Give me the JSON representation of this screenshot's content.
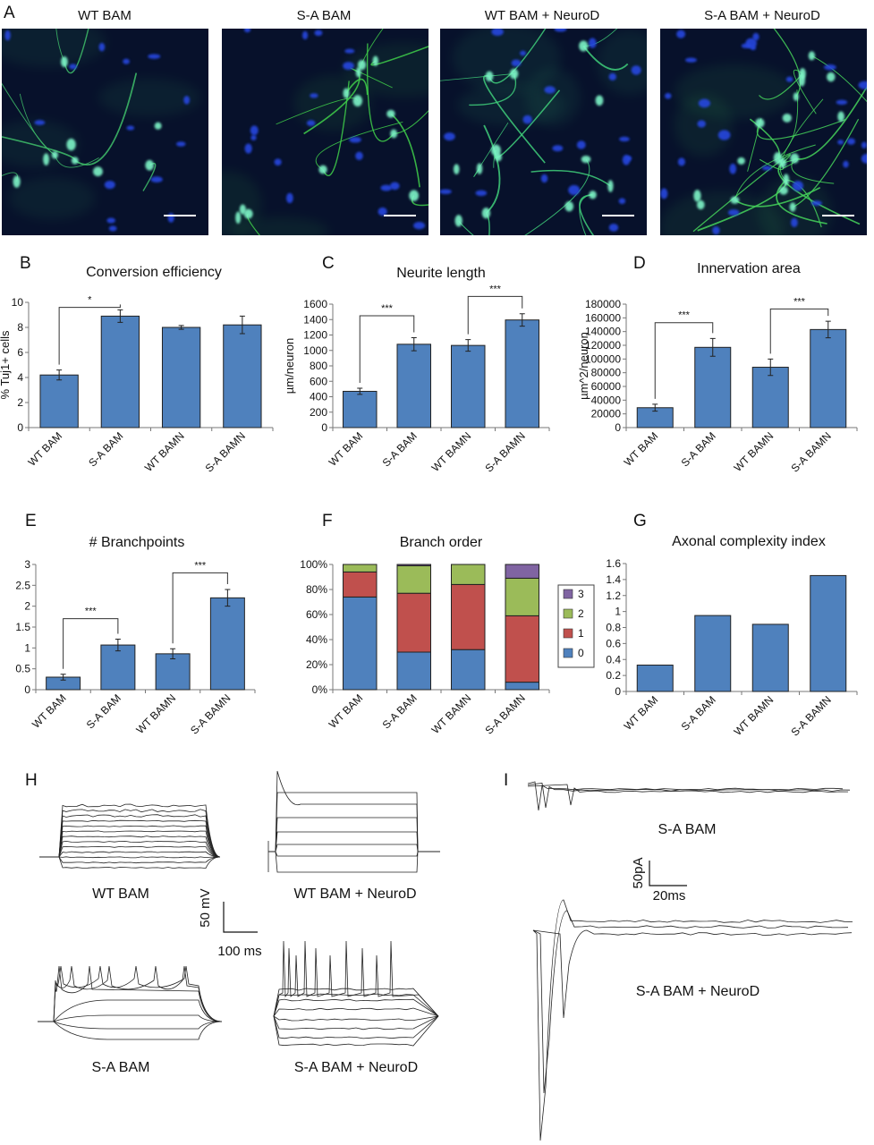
{
  "panelA": {
    "letter": "A",
    "images": [
      {
        "title": "WT BAM",
        "density": 0.35,
        "neurite": "#3fbf6a",
        "nucleus": "#2547e0"
      },
      {
        "title": "S-A BAM",
        "density": 0.55,
        "neurite": "#3fcf4a",
        "nucleus": "#2547e0"
      },
      {
        "title": "WT BAM + NeuroD",
        "density": 0.7,
        "neurite": "#3fcf7a",
        "nucleus": "#2547e0"
      },
      {
        "title": "S-A BAM + NeuroD",
        "density": 1.0,
        "neurite": "#45d35a",
        "nucleus": "#2547e0"
      }
    ]
  },
  "chart_data": [
    {
      "id": "B",
      "type": "bar",
      "title": "Conversion efficiency",
      "ylabel": "% Tuj1+ cells",
      "categories": [
        "WT BAM",
        "S-A BAM",
        "WT BAMN",
        "S-A BAMN"
      ],
      "values": [
        4.2,
        8.9,
        8.0,
        8.2
      ],
      "errors": [
        0.4,
        0.5,
        0.15,
        0.7
      ],
      "ylim": [
        0,
        10
      ],
      "yticks": [
        "0",
        "2",
        "4",
        "6",
        "8",
        "10"
      ],
      "significance": [
        {
          "from": 0,
          "to": 1,
          "label": "*",
          "level": 9.6
        }
      ],
      "bar_color": "#4f81bd"
    },
    {
      "id": "C",
      "type": "bar",
      "title": "Neurite length",
      "ylabel": "µm/neuron",
      "categories": [
        "WT BAM",
        "S-A BAM",
        "WT BAMN",
        "S-A BAMN"
      ],
      "values": [
        470,
        1080,
        1065,
        1395
      ],
      "errors": [
        40,
        85,
        75,
        80
      ],
      "ylim": [
        0,
        1600
      ],
      "yticks": [
        "0",
        "200",
        "400",
        "600",
        "800",
        "1000",
        "1200",
        "1400",
        "1600"
      ],
      "significance": [
        {
          "from": 0,
          "to": 1,
          "label": "***",
          "level": 1450
        },
        {
          "from": 2,
          "to": 3,
          "label": "***",
          "level": 1700
        }
      ],
      "bar_color": "#4f81bd"
    },
    {
      "id": "D",
      "type": "bar",
      "title": "Innervation area",
      "ylabel": "µm^2/neuron",
      "categories": [
        "WT BAM",
        "S-A BAM",
        "WT BAMN",
        "S-A BAMN"
      ],
      "values": [
        29000,
        117000,
        88000,
        143000
      ],
      "errors": [
        5000,
        13000,
        12000,
        12000
      ],
      "ylim": [
        0,
        180000
      ],
      "yticks": [
        "0",
        "20000",
        "40000",
        "60000",
        "80000",
        "100000",
        "120000",
        "140000",
        "160000",
        "180000"
      ],
      "significance": [
        {
          "from": 0,
          "to": 1,
          "label": "***",
          "level": 153000
        },
        {
          "from": 2,
          "to": 3,
          "label": "***",
          "level": 173000
        }
      ],
      "bar_color": "#4f81bd"
    },
    {
      "id": "E",
      "type": "bar",
      "title": "# Branchpoints",
      "ylabel": "",
      "categories": [
        "WT BAM",
        "S-A BAM",
        "WT BAMN",
        "S-A BAMN"
      ],
      "values": [
        0.3,
        1.07,
        0.86,
        2.2
      ],
      "errors": [
        0.07,
        0.14,
        0.12,
        0.2
      ],
      "ylim": [
        0,
        3
      ],
      "yticks": [
        "0",
        "0.5",
        "1",
        "1.5",
        "2",
        "2.5",
        "3"
      ],
      "significance": [
        {
          "from": 0,
          "to": 1,
          "label": "***",
          "level": 1.7
        },
        {
          "from": 2,
          "to": 3,
          "label": "***",
          "level": 2.8
        }
      ],
      "bar_color": "#4f81bd"
    },
    {
      "id": "F",
      "type": "bar",
      "stacked": true,
      "title": "Branch order",
      "ylabel": "",
      "categories": [
        "WT BAM",
        "S-A BAM",
        "WT BAMN",
        "S-A BAMN"
      ],
      "series": [
        {
          "name": "0",
          "color": "#4f81bd",
          "values": [
            74,
            30,
            32,
            6
          ]
        },
        {
          "name": "1",
          "color": "#c0504d",
          "values": [
            20,
            47,
            52,
            53
          ]
        },
        {
          "name": "2",
          "color": "#9bbb59",
          "values": [
            6,
            22,
            16,
            30
          ]
        },
        {
          "name": "3",
          "color": "#8064a2",
          "values": [
            0,
            1,
            0,
            11
          ]
        }
      ],
      "ylim": [
        0,
        100
      ],
      "yticks": [
        "0%",
        "20%",
        "40%",
        "60%",
        "80%",
        "100%"
      ],
      "legend": "right"
    },
    {
      "id": "G",
      "type": "bar",
      "title": "Axonal complexity index",
      "ylabel": "",
      "categories": [
        "WT BAM",
        "S-A BAM",
        "WT BAMN",
        "S-A BAMN"
      ],
      "values": [
        0.33,
        0.95,
        0.84,
        1.45
      ],
      "ylim": [
        0,
        1.6
      ],
      "yticks": [
        "0",
        "0.2",
        "0.4",
        "0.6",
        "0.8",
        "1",
        "1.2",
        "1.4",
        "1.6"
      ],
      "bar_color": "#4f81bd"
    }
  ],
  "panelH": {
    "letter": "H",
    "labels": [
      "WT BAM",
      "WT BAM + NeuroD",
      "S-A BAM",
      "S-A BAM + NeuroD"
    ],
    "scale_v": "50 mV",
    "scale_t": "100 ms"
  },
  "panelI": {
    "letter": "I",
    "labels": [
      "S-A BAM",
      "S-A BAM + NeuroD"
    ],
    "scale_i": "50pA",
    "scale_t": "20ms"
  }
}
